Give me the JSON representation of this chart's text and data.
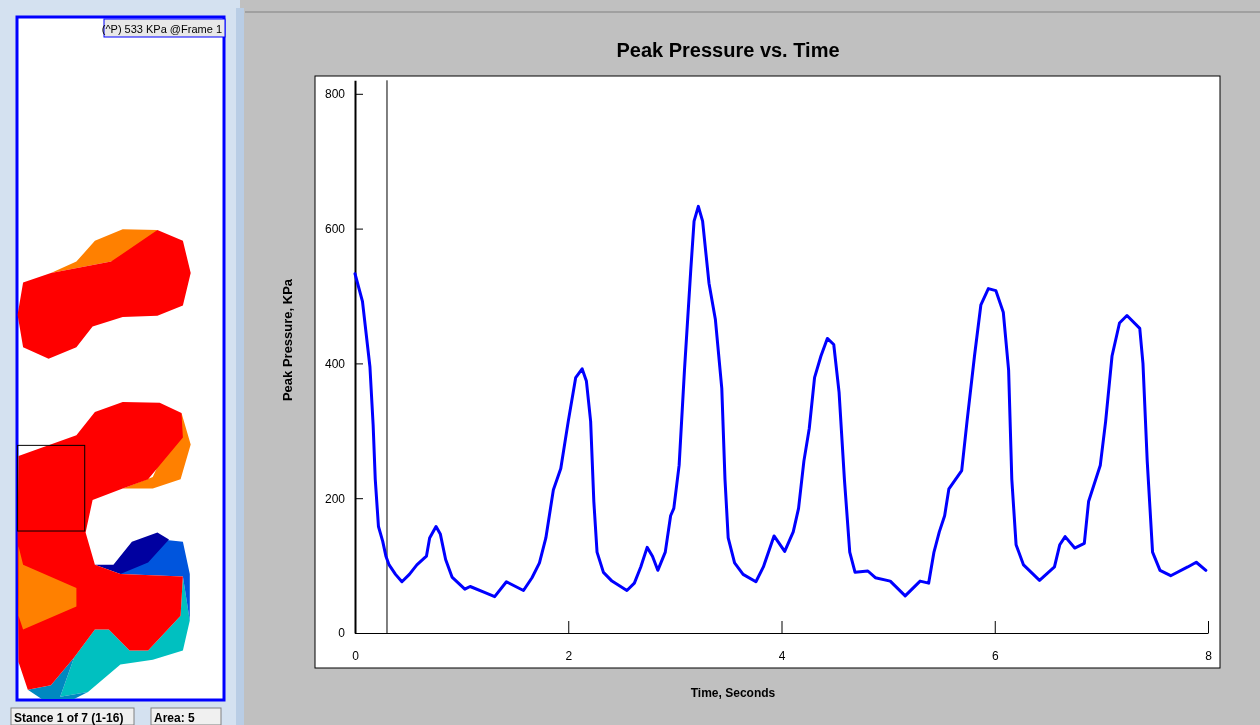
{
  "chart_data": {
    "type": "line",
    "title": "Peak Pressure vs. Time",
    "xlabel": "Time, Seconds",
    "ylabel": "Peak Pressure, KPa",
    "xlim": [
      0,
      8
    ],
    "xticks": [
      0,
      2,
      4,
      6,
      8
    ],
    "ylim": [
      0,
      820
    ],
    "yticks": [
      0,
      200,
      400,
      600,
      800
    ],
    "marker": "none",
    "line_style": "solid",
    "ref_lines": [
      {
        "axis": "x",
        "value": 0.3,
        "label": null,
        "color": "#000000"
      }
    ],
    "annotations": [
      "(^P) 533 KPa @Frame 1",
      "Stance 1 of 7 (1-16)",
      "Area: 5"
    ],
    "series": [
      {
        "color": "#0000ff",
        "x": [
          0,
          0.07,
          0.14,
          0.17,
          0.19,
          0.22,
          0.26,
          0.29,
          0.32,
          0.38,
          0.44,
          0.51,
          0.58,
          0.67,
          0.7,
          0.76,
          0.8,
          0.85,
          0.91,
          0.97,
          1.03,
          1.08,
          1.22,
          1.31,
          1.42,
          1.58,
          1.66,
          1.73,
          1.79,
          1.86,
          1.93,
          2.0,
          2.07,
          2.13,
          2.17,
          2.21,
          2.24,
          2.27,
          2.33,
          2.41,
          2.55,
          2.62,
          2.68,
          2.74,
          2.79,
          2.84,
          2.91,
          2.96,
          2.99,
          3.04,
          3.09,
          3.15,
          3.18,
          3.22,
          3.26,
          3.32,
          3.38,
          3.44,
          3.47,
          3.5,
          3.56,
          3.64,
          3.76,
          3.83,
          3.93,
          4.03,
          4.11,
          4.16,
          4.21,
          4.26,
          4.31,
          4.37,
          4.43,
          4.49,
          4.54,
          4.59,
          4.64,
          4.69,
          4.81,
          4.88,
          5.02,
          5.16,
          5.3,
          5.38,
          5.43,
          5.48,
          5.53,
          5.57,
          5.69,
          5.74,
          5.81,
          5.87,
          5.94,
          6.01,
          6.08,
          6.13,
          6.16,
          6.2,
          6.27,
          6.42,
          6.56,
          6.61,
          6.66,
          6.75,
          6.84,
          6.88,
          6.99,
          7.04,
          7.1,
          7.17,
          7.24,
          7.36,
          7.39,
          7.43,
          7.48,
          7.55,
          7.65,
          7.81,
          7.89,
          7.98
        ],
        "values": [
          533,
          492,
          395,
          309,
          228,
          158,
          136,
          114,
          101,
          87,
          76,
          87,
          101,
          114,
          141,
          158,
          147,
          109,
          83,
          74,
          65,
          69,
          60,
          54,
          76,
          63,
          82,
          104,
          141,
          212,
          244,
          314,
          379,
          392,
          374,
          314,
          195,
          120,
          90,
          77,
          63,
          74,
          98,
          127,
          114,
          93,
          120,
          174,
          185,
          249,
          390,
          541,
          611,
          633,
          611,
          519,
          465,
          363,
          228,
          141,
          104,
          87,
          76,
          98,
          144,
          121,
          150,
          185,
          255,
          303,
          379,
          411,
          437,
          428,
          357,
          228,
          120,
          90,
          92,
          82,
          77,
          55,
          77,
          74,
          120,
          150,
          174,
          214,
          241,
          314,
          411,
          487,
          511,
          508,
          476,
          390,
          228,
          131,
          101,
          78,
          98,
          131,
          143,
          126,
          133,
          195,
          249,
          314,
          411,
          460,
          471,
          452,
          400,
          255,
          120,
          93,
          85,
          98,
          105,
          93
        ]
      }
    ]
  }
}
